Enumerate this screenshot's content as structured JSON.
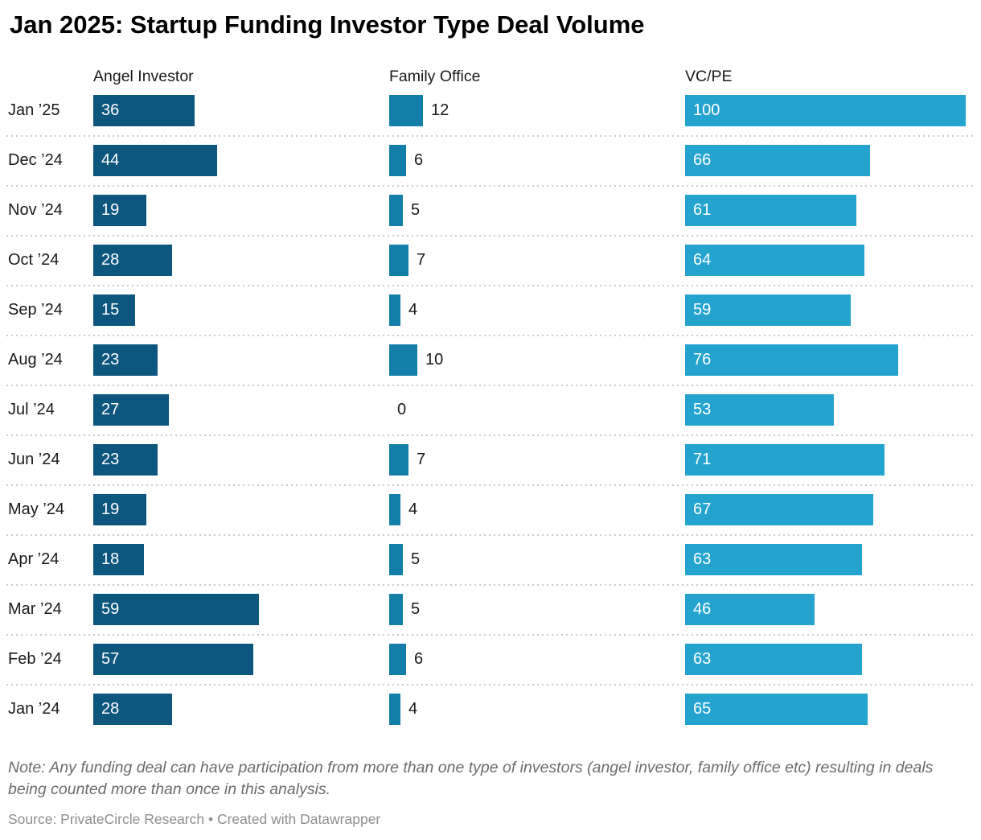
{
  "title": "Jan 2025: Startup Funding Investor Type Deal Volume",
  "note": "Note: Any funding deal can have participation from more than one type of investors (angel investor, family office etc) resulting in deals being counted more than once in this analysis.",
  "source": "Source: PrivateCircle Research • Created with Datawrapper",
  "chart_data": {
    "type": "bar",
    "orientation": "horizontal",
    "title": "Jan 2025: Startup Funding Investor Type Deal Volume",
    "categories": [
      "Jan ’25",
      "Dec ’24",
      "Nov ’24",
      "Oct ’24",
      "Sep ’24",
      "Aug ’24",
      "Jul ’24",
      "Jun ’24",
      "May ’24",
      "Apr ’24",
      "Mar ’24",
      "Feb ’24",
      "Jan ’24"
    ],
    "series": [
      {
        "name": "Angel Investor",
        "color": "#0d567e",
        "label_position": "inside",
        "values": [
          36,
          44,
          19,
          28,
          15,
          23,
          27,
          23,
          19,
          18,
          59,
          57,
          28
        ]
      },
      {
        "name": "Family Office",
        "color": "#137fa8",
        "label_position": "outside",
        "values": [
          12,
          6,
          5,
          7,
          4,
          10,
          0,
          7,
          4,
          5,
          5,
          6,
          4
        ]
      },
      {
        "name": "VC/PE",
        "color": "#24a3cf",
        "label_position": "inside",
        "values": [
          100,
          66,
          61,
          64,
          59,
          76,
          53,
          71,
          67,
          63,
          46,
          63,
          65
        ]
      }
    ],
    "xlim": [
      0,
      100
    ],
    "grid": "dotted-row-separators",
    "legend_position": "column-headers",
    "value_labels": true,
    "separator_color": "#cccccc",
    "value_label_inside_color": "#ffffff",
    "value_label_outside_color": "#1a1a1a"
  }
}
